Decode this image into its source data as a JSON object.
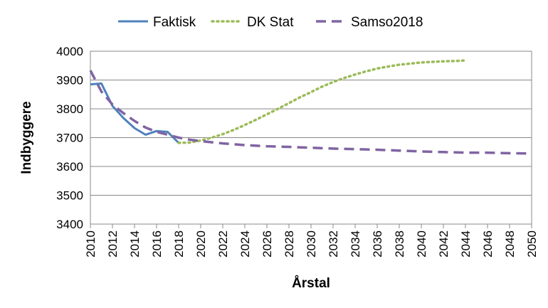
{
  "chart_data": {
    "type": "line",
    "title": "",
    "xlabel": "Årstal",
    "ylabel": "Indbyggere",
    "xlim": [
      2010,
      2050
    ],
    "ylim": [
      3400,
      4000
    ],
    "x_ticks": [
      "2010",
      "2012",
      "2014",
      "2016",
      "2018",
      "2020",
      "2022",
      "2024",
      "2026",
      "2028",
      "2030",
      "2032",
      "2034",
      "2036",
      "2038",
      "2040",
      "2042",
      "2044",
      "2046",
      "2048",
      "2050"
    ],
    "y_ticks": [
      "3400",
      "3500",
      "3600",
      "3700",
      "3800",
      "3900",
      "4000"
    ],
    "grid": "horizontal",
    "legend_position": "top",
    "series": [
      {
        "name": "Faktisk",
        "color": "#4F81BD",
        "style": "solid",
        "x": [
          2010,
          2011,
          2012,
          2013,
          2014,
          2015,
          2016,
          2017,
          2018
        ],
        "y": [
          3885,
          3888,
          3810,
          3768,
          3733,
          3710,
          3723,
          3720,
          3682
        ]
      },
      {
        "name": "DK Stat",
        "color": "#9BBB59",
        "style": "dotted",
        "x": [
          2018,
          2019,
          2020,
          2021,
          2022,
          2023,
          2024,
          2025,
          2026,
          2027,
          2028,
          2029,
          2030,
          2031,
          2032,
          2033,
          2034,
          2035,
          2036,
          2037,
          2038,
          2039,
          2040,
          2041,
          2042,
          2043,
          2044
        ],
        "y": [
          3682,
          3683,
          3690,
          3700,
          3712,
          3727,
          3744,
          3762,
          3781,
          3800,
          3820,
          3840,
          3858,
          3877,
          3893,
          3907,
          3919,
          3930,
          3940,
          3947,
          3953,
          3957,
          3961,
          3963,
          3965,
          3966,
          3968
        ]
      },
      {
        "name": "Samso2018",
        "color": "#8064A2",
        "style": "dashed",
        "x": [
          2010,
          2011,
          2012,
          2013,
          2014,
          2015,
          2016,
          2017,
          2018,
          2019,
          2020,
          2022,
          2024,
          2026,
          2028,
          2030,
          2032,
          2034,
          2036,
          2038,
          2040,
          2042,
          2044,
          2046,
          2048,
          2050
        ],
        "y": [
          3933,
          3860,
          3815,
          3785,
          3758,
          3735,
          3720,
          3710,
          3700,
          3693,
          3688,
          3680,
          3674,
          3670,
          3668,
          3665,
          3662,
          3660,
          3658,
          3655,
          3652,
          3650,
          3648,
          3648,
          3646,
          3645
        ]
      }
    ]
  }
}
